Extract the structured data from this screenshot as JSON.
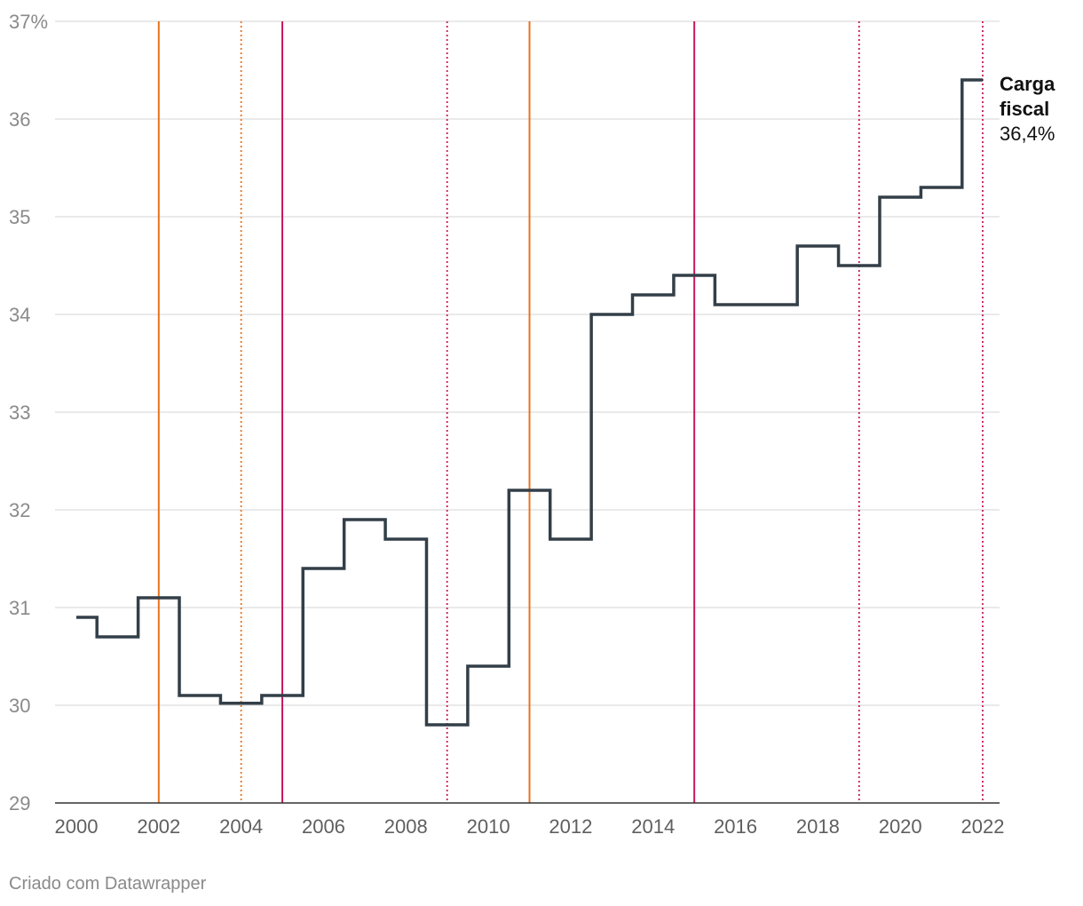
{
  "chart_data": {
    "type": "line",
    "style": "step",
    "x": [
      2000,
      2001,
      2002,
      2003,
      2004,
      2005,
      2006,
      2007,
      2008,
      2009,
      2010,
      2011,
      2012,
      2013,
      2014,
      2015,
      2016,
      2017,
      2018,
      2019,
      2020,
      2021,
      2022
    ],
    "series": [
      {
        "values": [
          30.9,
          30.7,
          31.1,
          30.1,
          30.02,
          30.1,
          31.4,
          31.9,
          31.7,
          29.8,
          30.4,
          32.2,
          31.7,
          34.0,
          34.2,
          34.4,
          34.1,
          34.1,
          34.7,
          34.5,
          35.2,
          35.3,
          36.4
        ],
        "color": "#333f48"
      }
    ],
    "end_label": {
      "name_line1": "Carga",
      "name_line2": "fiscal",
      "value": "36,4%"
    },
    "ylim": [
      29,
      37
    ],
    "xlim": [
      2000,
      2022
    ],
    "y_ticks": [
      29,
      30,
      31,
      32,
      33,
      34,
      35,
      36,
      37
    ],
    "y_tick_labels": [
      "29",
      "30",
      "31",
      "32",
      "33",
      "34",
      "35",
      "36",
      "37%"
    ],
    "x_ticks": [
      2000,
      2002,
      2004,
      2006,
      2008,
      2010,
      2012,
      2014,
      2016,
      2018,
      2020,
      2022
    ],
    "x_tick_labels": [
      "2000",
      "2002",
      "2004",
      "2006",
      "2008",
      "2010",
      "2012",
      "2014",
      "2016",
      "2018",
      "2020",
      "2022"
    ],
    "grid": true,
    "reference_lines": [
      {
        "x": 2002,
        "color": "#e8731f",
        "style": "solid"
      },
      {
        "x": 2004,
        "color": "#e8731f",
        "style": "dotted"
      },
      {
        "x": 2005,
        "color": "#c8175f",
        "style": "solid"
      },
      {
        "x": 2009,
        "color": "#c8175f",
        "style": "dotted"
      },
      {
        "x": 2011,
        "color": "#e8731f",
        "style": "solid"
      },
      {
        "x": 2015,
        "color": "#c8175f",
        "style": "solid"
      },
      {
        "x": 2019,
        "color": "#c8175f",
        "style": "dotted"
      },
      {
        "x": 2022,
        "color": "#c8175f",
        "style": "dotted"
      }
    ]
  },
  "footer": {
    "credit": "Criado com Datawrapper"
  }
}
